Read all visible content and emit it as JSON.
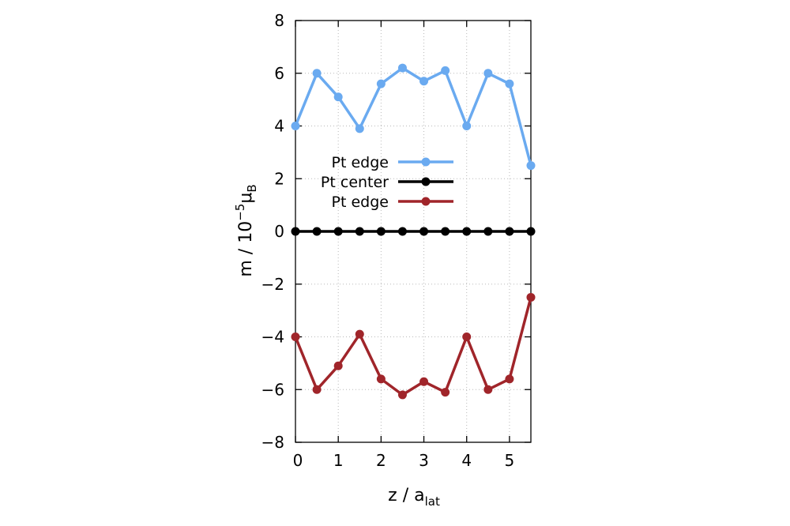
{
  "chart_data": {
    "type": "line",
    "title": "",
    "xlabel": {
      "base": "z / a",
      "sub": "lat"
    },
    "ylabel": {
      "base": "m / 10",
      "sup": "−5",
      "unit": "μ",
      "sub": "B"
    },
    "xlim": [
      0,
      5.5
    ],
    "ylim": [
      -8,
      8
    ],
    "xticks": [
      0,
      1,
      2,
      3,
      4,
      5
    ],
    "xtick_labels": [
      "0",
      "1",
      "2",
      "3",
      "4",
      "5"
    ],
    "yticks": [
      -8,
      -6,
      -4,
      -2,
      0,
      2,
      4,
      6,
      8
    ],
    "ytick_labels": [
      "−8",
      "−6",
      "−4",
      "−2",
      "0",
      "2",
      "4",
      "6",
      "8"
    ],
    "grid": true,
    "legend_position": "center-left",
    "x": [
      0,
      0.5,
      1,
      1.5,
      2,
      2.5,
      3,
      3.5,
      4,
      4.5,
      5,
      5.5
    ],
    "series": [
      {
        "name": "Pt edge",
        "color": "#6aaaf0",
        "values": [
          4.0,
          6.0,
          5.1,
          3.9,
          5.6,
          6.2,
          5.7,
          6.1,
          4.0,
          6.0,
          5.6,
          2.5
        ]
      },
      {
        "name": "Pt center",
        "color": "#000000",
        "values": [
          0,
          0,
          0,
          0,
          0,
          0,
          0,
          0,
          0,
          0,
          0,
          0
        ]
      },
      {
        "name": "Pt edge",
        "color": "#a0252a",
        "values": [
          -4.0,
          -6.0,
          -5.1,
          -3.9,
          -5.6,
          -6.2,
          -5.7,
          -6.1,
          -4.0,
          -6.0,
          -5.6,
          -2.5
        ]
      }
    ]
  }
}
